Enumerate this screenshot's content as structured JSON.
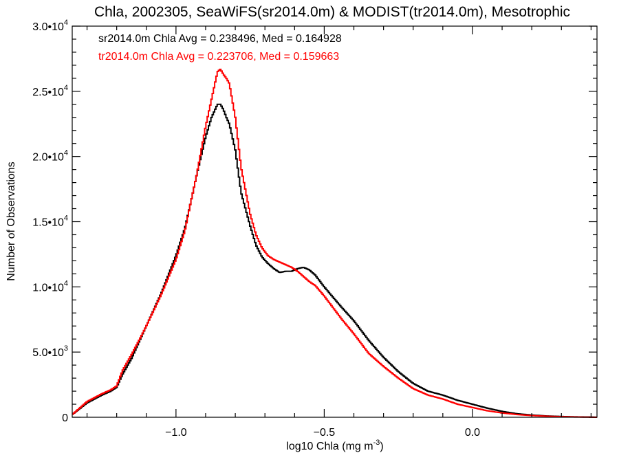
{
  "chart_data": {
    "type": "line",
    "title": "Chla, 2002305, SeaWiFS(sr2014.0m) & MODIST(tr2014.0m), Mesotrophic",
    "xlabel": "log10 Chla (mg m",
    "xlabel_sup": "-3",
    "xlabel_end": ")",
    "ylabel": "Number of Observations",
    "xlim": [
      -1.35,
      0.42
    ],
    "ylim": [
      0,
      30000
    ],
    "grid": false,
    "x_ticks": [
      {
        "value": -1.0,
        "label": "−1.0"
      },
      {
        "value": -0.5,
        "label": "−0.5"
      },
      {
        "value": 0.0,
        "label": "0.0"
      }
    ],
    "y_ticks": [
      {
        "value": 0,
        "mantissa": "0",
        "exp": ""
      },
      {
        "value": 5000,
        "mantissa": "5.0•10",
        "exp": "3"
      },
      {
        "value": 10000,
        "mantissa": "1.0•10",
        "exp": "4"
      },
      {
        "value": 15000,
        "mantissa": "1.5•10",
        "exp": "4"
      },
      {
        "value": 20000,
        "mantissa": "2.0•10",
        "exp": "4"
      },
      {
        "value": 25000,
        "mantissa": "2.5•10",
        "exp": "4"
      },
      {
        "value": 30000,
        "mantissa": "3.0•10",
        "exp": "4"
      }
    ],
    "annotations": [
      {
        "text": "sr2014.0m Chla Avg = 0.238496, Med = 0.164928",
        "color": "#000000"
      },
      {
        "text": "tr2014.0m Chla Avg = 0.223706, Med = 0.159663",
        "color": "#ff0000"
      }
    ],
    "series": [
      {
        "color": "#000000",
        "x": [
          -1.35,
          -1.3,
          -1.25,
          -1.22,
          -1.2,
          -1.18,
          -1.15,
          -1.12,
          -1.1,
          -1.05,
          -1.0,
          -0.97,
          -0.95,
          -0.93,
          -0.9,
          -0.88,
          -0.86,
          -0.85,
          -0.84,
          -0.83,
          -0.82,
          -0.8,
          -0.78,
          -0.75,
          -0.73,
          -0.71,
          -0.69,
          -0.67,
          -0.65,
          -0.63,
          -0.61,
          -0.59,
          -0.57,
          -0.55,
          -0.53,
          -0.5,
          -0.47,
          -0.44,
          -0.4,
          -0.35,
          -0.3,
          -0.25,
          -0.2,
          -0.15,
          -0.1,
          -0.05,
          0.0,
          0.05,
          0.1,
          0.15,
          0.2,
          0.25,
          0.3,
          0.35,
          0.4,
          0.42
        ],
        "y": [
          200,
          1100,
          1700,
          2000,
          2300,
          3300,
          4500,
          6000,
          7000,
          9500,
          12400,
          14500,
          16500,
          18600,
          21500,
          23000,
          24000,
          24000,
          23600,
          23000,
          22500,
          20500,
          17200,
          14700,
          13200,
          12300,
          11800,
          11400,
          11100,
          11200,
          11200,
          11400,
          11500,
          11300,
          10900,
          10000,
          9200,
          8400,
          7400,
          5900,
          4600,
          3500,
          2600,
          2000,
          1700,
          1300,
          1000,
          700,
          450,
          270,
          170,
          100,
          60,
          30,
          15,
          0
        ]
      },
      {
        "color": "#ff0000",
        "x": [
          -1.35,
          -1.3,
          -1.25,
          -1.22,
          -1.2,
          -1.18,
          -1.15,
          -1.12,
          -1.1,
          -1.05,
          -1.0,
          -0.97,
          -0.95,
          -0.93,
          -0.9,
          -0.88,
          -0.86,
          -0.85,
          -0.84,
          -0.83,
          -0.82,
          -0.8,
          -0.78,
          -0.75,
          -0.73,
          -0.71,
          -0.69,
          -0.67,
          -0.65,
          -0.63,
          -0.61,
          -0.59,
          -0.57,
          -0.55,
          -0.53,
          -0.5,
          -0.47,
          -0.44,
          -0.4,
          -0.35,
          -0.3,
          -0.25,
          -0.2,
          -0.15,
          -0.1,
          -0.05,
          0.0,
          0.05,
          0.1,
          0.15,
          0.2,
          0.25,
          0.3,
          0.35,
          0.4,
          0.42
        ],
        "y": [
          200,
          1200,
          1800,
          2100,
          2400,
          3600,
          4800,
          6100,
          7000,
          9400,
          12100,
          14300,
          16500,
          18600,
          22300,
          24400,
          26500,
          26700,
          26300,
          26000,
          25600,
          23000,
          19100,
          15600,
          14000,
          13000,
          12400,
          12100,
          11900,
          11700,
          11500,
          11200,
          10800,
          10400,
          10100,
          9300,
          8400,
          7500,
          6400,
          4900,
          3900,
          3000,
          2200,
          1700,
          1400,
          1000,
          750,
          500,
          330,
          210,
          130,
          80,
          45,
          20,
          8,
          0
        ]
      }
    ]
  }
}
